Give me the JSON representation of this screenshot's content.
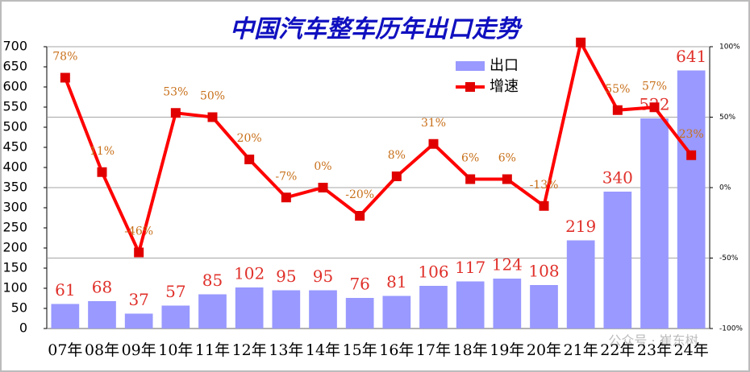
{
  "chart_data": {
    "type": "bar",
    "title": "中国汽车整车历年出口走势",
    "categories": [
      "07年",
      "08年",
      "09年",
      "10年",
      "11年",
      "12年",
      "13年",
      "14年",
      "15年",
      "16年",
      "17年",
      "18年",
      "19年",
      "20年",
      "21年",
      "22年",
      "23年",
      "24年"
    ],
    "series": [
      {
        "name": "出口",
        "type": "bar",
        "color": "#9999ff",
        "values": [
          61,
          68,
          37,
          57,
          85,
          102,
          95,
          95,
          76,
          81,
          106,
          117,
          124,
          108,
          219,
          340,
          522,
          641
        ]
      },
      {
        "name": "增速",
        "type": "line",
        "axis": "y2",
        "color": "#ff0000",
        "values": [
          78,
          11,
          -46,
          53,
          50,
          20,
          -7,
          0,
          -20,
          8,
          31,
          6,
          6,
          -13,
          103,
          55,
          57,
          23
        ],
        "value_labels": [
          "78%",
          "11%",
          "-46%",
          "53%",
          "50%",
          "20%",
          "-7%",
          "0%",
          "-20%",
          "8%",
          "31%",
          "6%",
          "6%",
          "-13%",
          null,
          "55%",
          "57%",
          "23%"
        ]
      }
    ],
    "ylim": [
      0,
      700
    ],
    "yticks": [
      0,
      50,
      100,
      150,
      200,
      250,
      300,
      350,
      400,
      450,
      500,
      550,
      600,
      650,
      700
    ],
    "y2lim": [
      -100,
      100
    ],
    "y2ticks": [
      {
        "value": -100,
        "label": "-100%"
      },
      {
        "value": -50,
        "label": "-50%"
      },
      {
        "value": 0,
        "label": "0%"
      },
      {
        "value": 50,
        "label": "50%"
      },
      {
        "value": 100,
        "label": "100%"
      }
    ],
    "y2grid": true,
    "legend": "top-right",
    "watermark": "公众号 · 崔东树"
  }
}
